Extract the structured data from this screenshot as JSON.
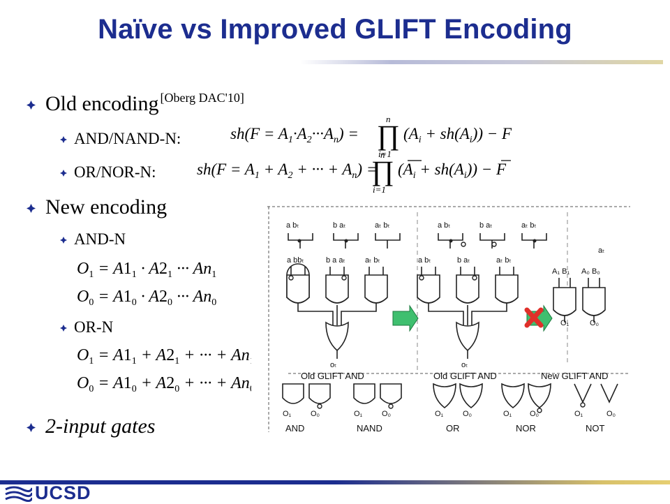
{
  "title": "Naïve vs Improved GLIFT Encoding",
  "bullets": {
    "old_encoding": "Old encoding",
    "old_cite": "[Oberg  DAC'10]",
    "and_nand": "AND/NAND-N:",
    "or_nor": "OR/NOR-N:",
    "new_encoding": "New encoding",
    "and_n": "AND-N",
    "or_n": "OR-N",
    "two_input": "2-input gates"
  },
  "diagram": {
    "left_caption": "Old GLIFT AND",
    "mid_caption": "Old GLIFT AND",
    "right_caption": "New GLIFT AND",
    "left_output": "oₜ",
    "mid_output": "oₜ",
    "gate_labels": [
      "AND",
      "NAND",
      "OR",
      "NOR",
      "NOT"
    ],
    "at_label": "aₜ"
  },
  "logo": {
    "text": "UCSD"
  },
  "colors": {
    "title": "#1c2d8f",
    "accent_gold": "#d8c16a",
    "arrow_green": "#3fbf6f",
    "cross_red": "#e0302a"
  }
}
